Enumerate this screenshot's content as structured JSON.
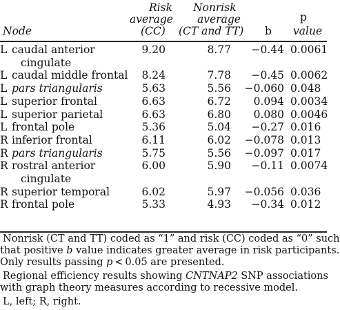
{
  "table": {
    "headers": {
      "node": "Node",
      "risk_line1": "Risk",
      "risk_line2": "average",
      "risk_line3": "(CC)",
      "nonrisk_line1": "Nonrisk",
      "nonrisk_line2": "average",
      "nonrisk_line3": "(CT and TT)",
      "b": "b",
      "p_line1": "p",
      "p_line2": "value"
    },
    "rows": [
      {
        "hemi": "L",
        "node": "caudal anterior",
        "node2": "cingulate",
        "risk": "9.20",
        "nonrisk": "8.77",
        "b": "−0.44",
        "p": "0.0061"
      },
      {
        "hemi": "L",
        "node": "caudal middle frontal",
        "risk": "8.24",
        "nonrisk": "7.78",
        "b": "−0.45",
        "p": "0.0062"
      },
      {
        "hemi": "L",
        "node": "pars triangularis",
        "risk": "5.63",
        "nonrisk": "5.56",
        "b": "−0.060",
        "p": "0.048"
      },
      {
        "hemi": "L",
        "node": "superior frontal",
        "risk": "6.63",
        "nonrisk": "6.72",
        "b": "0.094",
        "p": "0.0034"
      },
      {
        "hemi": "L",
        "node": "superior parietal",
        "risk": "6.63",
        "nonrisk": "6.80",
        "b": "0.080",
        "p": "0.0046"
      },
      {
        "hemi": "L",
        "node": "frontal pole",
        "risk": "5.36",
        "nonrisk": "5.04",
        "b": "−0.27",
        "p": "0.016"
      },
      {
        "hemi": "R",
        "node": "inferior frontal",
        "risk": "6.11",
        "nonrisk": "6.02",
        "b": "−0.078",
        "p": "0.013"
      },
      {
        "hemi": "R",
        "node": "pars triangularis",
        "risk": "5.75",
        "nonrisk": "5.56",
        "b": "−0.097",
        "p": "0.017"
      },
      {
        "hemi": "R",
        "node": "rostral anterior",
        "node2": "cingulate",
        "risk": "6.00",
        "nonrisk": "5.90",
        "b": "−0.11",
        "p": "0.0074"
      },
      {
        "hemi": "R",
        "node": "superior temporal",
        "risk": "6.02",
        "nonrisk": "5.97",
        "b": "−0.056",
        "p": "0.036"
      },
      {
        "hemi": "R",
        "node": "frontal pole",
        "risk": "5.33",
        "nonrisk": "4.93",
        "b": "−0.34",
        "p": "0.012"
      }
    ]
  },
  "footnotes": {
    "f1_line1": "Nonrisk (CT and TT) coded as “1” and risk (CC) coded as “0” such",
    "f1_line2_a": "that positive ",
    "f1_line2_b": "b",
    "f1_line2_c": " value indicates greater average in risk participants.",
    "f1_line3_a": "Only results passing ",
    "f1_line3_b": "p",
    "f1_line3_c": " < 0.05 are presented.",
    "f2_line1_a": "Regional efficiency results showing ",
    "f2_line1_b": "CNTNAP2",
    "f2_line1_c": " SNP associations",
    "f2_line2": "with graph theory measures according to recessive model.",
    "f3": "L, left; R, right."
  }
}
